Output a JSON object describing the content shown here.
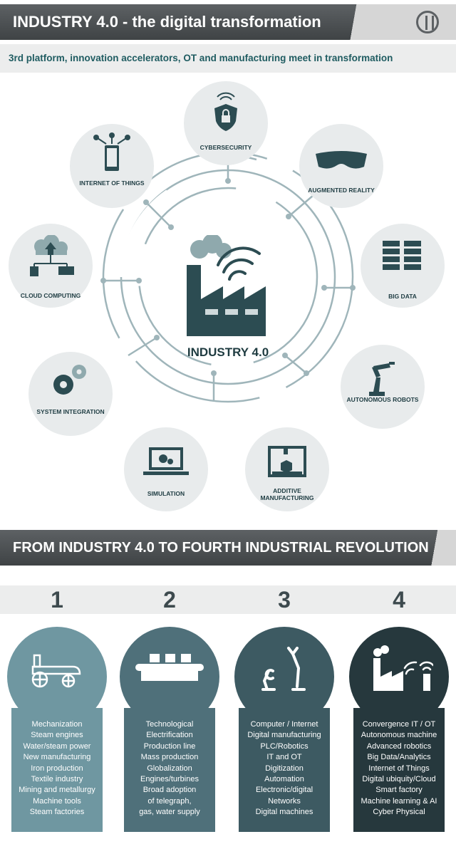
{
  "header": {
    "title": "INDUSTRY 4.0 - the digital transformation",
    "subtitle": "3rd platform, innovation accelerators, OT and manufacturing meet in transformation"
  },
  "wheel": {
    "center": "INDUSTRY 4.0",
    "nodes": [
      {
        "id": "cybersecurity",
        "label": "CYBERSECURITY"
      },
      {
        "id": "augmented-reality",
        "label": "AUGMENTED REALITY"
      },
      {
        "id": "big-data",
        "label": "BIG DATA"
      },
      {
        "id": "autonomous-robots",
        "label": "AUTONOMOUS ROBOTS"
      },
      {
        "id": "additive-manufacturing",
        "label": "ADDITIVE MANUFACTURING"
      },
      {
        "id": "simulation",
        "label": "SIMULATION"
      },
      {
        "id": "system-integration",
        "label": "SYSTEM INTEGRATION"
      },
      {
        "id": "cloud-computing",
        "label": "CLOUD COMPUTING"
      },
      {
        "id": "internet-of-things",
        "label": "INTERNET OF THINGS"
      }
    ]
  },
  "section2": {
    "title": "FROM INDUSTRY 4.0 TO FOURTH INDUSTRIAL REVOLUTION",
    "columns": [
      {
        "number": "1",
        "items": [
          "Mechanization",
          "Steam engines",
          "Water/steam power",
          "New manufacturing",
          "Iron production",
          "Textile industry",
          "Mining and metallurgy",
          "Machine tools",
          "Steam factories"
        ]
      },
      {
        "number": "2",
        "items": [
          "Technological",
          "Electrification",
          "Production line",
          "Mass production",
          "Globalization",
          "Engines/turbines",
          "Broad adoption",
          "of telegraph,",
          "gas, water supply"
        ]
      },
      {
        "number": "3",
        "items": [
          "Computer / Internet",
          "Digital manufacturing",
          "PLC/Robotics",
          "IT and OT",
          "Digitization",
          "Automation",
          "Electronic/digital",
          "Networks",
          "Digital machines"
        ]
      },
      {
        "number": "4",
        "items": [
          "Convergence IT / OT",
          "Autonomous machine",
          "Advanced robotics",
          "Big Data/Analytics",
          "Internet of Things",
          "Digital ubiquity/Cloud",
          "Smart factory",
          "Machine learning & AI",
          "Cyber Physical"
        ]
      }
    ]
  },
  "colors": {
    "col1": "#6f97a1",
    "col2": "#4f707a",
    "col3": "#3d5a62",
    "col4": "#26383d",
    "accent": "#1f5c61"
  }
}
